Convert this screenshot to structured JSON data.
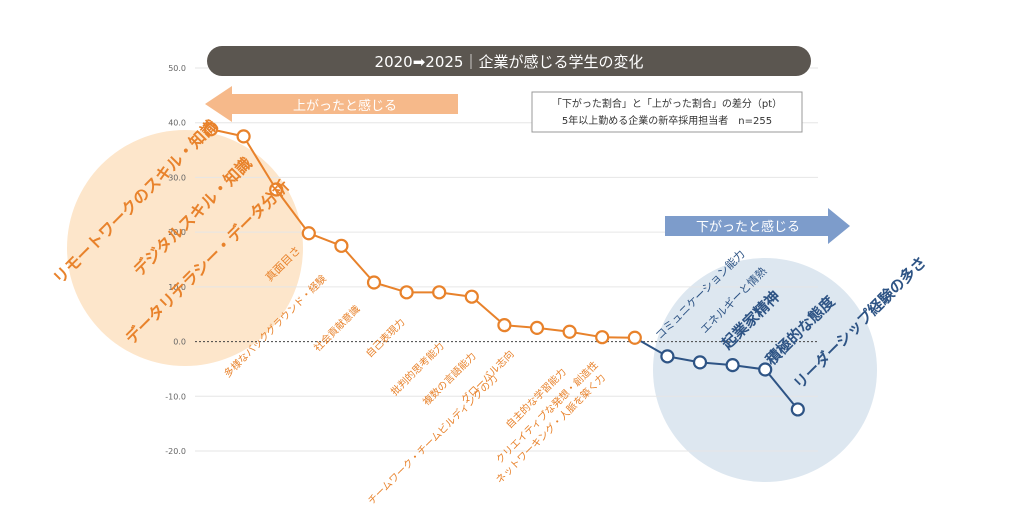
{
  "title_bar": "2020➡2025｜企業が感じる学生の変化",
  "arrow_up_label": "上がったと感じる",
  "arrow_down_label": "下がったと感じる",
  "note_line1": "「下がった割合」と「上がった割合」の差分（pt）",
  "note_line2": "5年以上勤める企業の新卒採用担当者　n=255",
  "colors": {
    "positive": "#e8822b",
    "negative": "#2e5485",
    "title_bg": "#5b5650",
    "arrow_up": "#f6b98a",
    "arrow_down": "#7d9ccb",
    "circle_up": "#fde6cb",
    "circle_down": "#dde7f0"
  },
  "chart_data": {
    "type": "line",
    "ylim": [
      -20,
      50
    ],
    "yticks": [
      "50.0",
      "40.0",
      "30.0",
      "20.0",
      "10.0",
      "0.0",
      "-10.0",
      "-20.0"
    ],
    "grid": true,
    "categories": [
      "リモートワークのスキル・知識",
      "デジタルスキル・知識",
      "データリテラシー・データ分析",
      "真面目さ",
      "多様なバックグラウンド・経験",
      "社会貢献意識",
      "自己表現力",
      "批判的思考能力",
      "複数の言語能力",
      "チームワーク・チームビルディングの力",
      "グローバル志向",
      "自主的な学習能力",
      "クリエイティブな発想・創造性",
      "ネットワーキング・人脈を築く力",
      "コミュニケーション能力",
      "エネルギーと情熱",
      "起業家精神",
      "積極的な態度",
      "リーダーシップ経験の多さ"
    ],
    "values": [
      38.8,
      37.5,
      27.8,
      19.8,
      17.5,
      10.8,
      9.0,
      9.0,
      8.2,
      3.0,
      2.5,
      1.8,
      0.8,
      0.7,
      -2.7,
      -3.8,
      -4.3,
      -5.1,
      -12.4
    ]
  }
}
